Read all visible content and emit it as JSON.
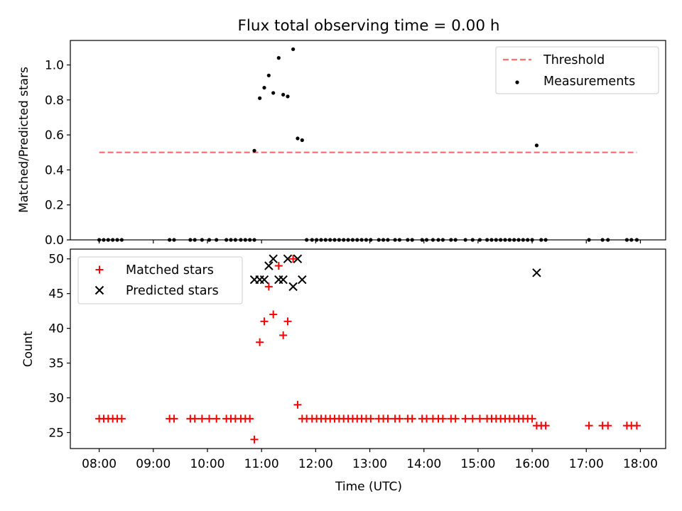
{
  "figure": {
    "title": "Flux total observing time = 0.00 h"
  },
  "colors": {
    "threshold": "#ff7070",
    "measurements": "#000000",
    "matched": "#ff0000",
    "predicted": "#000000"
  },
  "chart_data": [
    {
      "type": "scatter",
      "title": "Flux total observing time = 0.00 h",
      "xlabel": "",
      "ylabel": "Matched/Predicted stars",
      "ylim": [
        0,
        1.14
      ],
      "yticks": [
        "0.0",
        "0.2",
        "0.4",
        "0.6",
        "0.8",
        "1.0"
      ],
      "legend": "top-right",
      "threshold": {
        "name": "Threshold",
        "value": 0.5,
        "x_start": "08:00",
        "x_end": "17:56",
        "style": "dashed"
      },
      "series": [
        {
          "name": "Measurements",
          "marker": "dot",
          "points": [
            [
              "08:00",
              0
            ],
            [
              "08:05",
              0
            ],
            [
              "08:10",
              0
            ],
            [
              "08:15",
              0
            ],
            [
              "08:20",
              0
            ],
            [
              "08:25",
              0
            ],
            [
              "09:18",
              0
            ],
            [
              "09:23",
              0
            ],
            [
              "09:41",
              0
            ],
            [
              "09:46",
              0
            ],
            [
              "09:54",
              0
            ],
            [
              "10:02",
              0
            ],
            [
              "10:10",
              0
            ],
            [
              "10:21",
              0
            ],
            [
              "10:26",
              0
            ],
            [
              "10:31",
              0
            ],
            [
              "10:37",
              0
            ],
            [
              "10:42",
              0
            ],
            [
              "10:47",
              0
            ],
            [
              "10:52",
              0
            ],
            [
              "10:52",
              0.51
            ],
            [
              "10:58",
              0.81
            ],
            [
              "11:03",
              0.87
            ],
            [
              "11:08",
              0.94
            ],
            [
              "11:13",
              0.84
            ],
            [
              "11:19",
              1.04
            ],
            [
              "11:24",
              0.83
            ],
            [
              "11:29",
              0.82
            ],
            [
              "11:35",
              1.09
            ],
            [
              "11:40",
              0.58
            ],
            [
              "11:45",
              0.57
            ],
            [
              "11:50",
              0
            ],
            [
              "11:56",
              0
            ],
            [
              "12:01",
              0
            ],
            [
              "12:06",
              0
            ],
            [
              "12:11",
              0
            ],
            [
              "12:16",
              0
            ],
            [
              "12:21",
              0
            ],
            [
              "12:26",
              0
            ],
            [
              "12:31",
              0
            ],
            [
              "12:36",
              0
            ],
            [
              "12:41",
              0
            ],
            [
              "12:46",
              0
            ],
            [
              "12:51",
              0
            ],
            [
              "12:56",
              0
            ],
            [
              "13:01",
              0
            ],
            [
              "13:10",
              0
            ],
            [
              "13:15",
              0
            ],
            [
              "13:20",
              0
            ],
            [
              "13:28",
              0
            ],
            [
              "13:33",
              0
            ],
            [
              "13:42",
              0
            ],
            [
              "13:47",
              0
            ],
            [
              "13:58",
              0
            ],
            [
              "14:03",
              0
            ],
            [
              "14:10",
              0
            ],
            [
              "14:16",
              0
            ],
            [
              "14:21",
              0
            ],
            [
              "14:30",
              0
            ],
            [
              "14:35",
              0
            ],
            [
              "14:46",
              0
            ],
            [
              "14:54",
              0
            ],
            [
              "15:02",
              0
            ],
            [
              "15:10",
              0
            ],
            [
              "15:15",
              0
            ],
            [
              "15:20",
              0
            ],
            [
              "15:25",
              0
            ],
            [
              "15:30",
              0
            ],
            [
              "15:35",
              0
            ],
            [
              "15:40",
              0
            ],
            [
              "15:45",
              0
            ],
            [
              "15:50",
              0
            ],
            [
              "15:55",
              0
            ],
            [
              "16:00",
              0
            ],
            [
              "16:05",
              0.54
            ],
            [
              "16:10",
              0
            ],
            [
              "16:15",
              0
            ],
            [
              "17:03",
              0
            ],
            [
              "17:18",
              0
            ],
            [
              "17:24",
              0
            ],
            [
              "17:45",
              0
            ],
            [
              "17:50",
              0
            ],
            [
              "17:56",
              0
            ]
          ]
        }
      ]
    },
    {
      "type": "scatter",
      "title": "",
      "xlabel": "Time (UTC)",
      "ylabel": "Count",
      "ylim": [
        22.7,
        51.4
      ],
      "yticks": [
        "25",
        "30",
        "35",
        "40",
        "45",
        "50"
      ],
      "xlim": [
        "07:28",
        "18:28"
      ],
      "xticks": [
        "08:00",
        "09:00",
        "10:00",
        "11:00",
        "12:00",
        "13:00",
        "14:00",
        "15:00",
        "16:00",
        "17:00",
        "18:00"
      ],
      "legend": "top-left",
      "series": [
        {
          "name": "Matched stars",
          "marker": "plus",
          "points": [
            [
              "08:00",
              27
            ],
            [
              "08:05",
              27
            ],
            [
              "08:10",
              27
            ],
            [
              "08:15",
              27
            ],
            [
              "08:20",
              27
            ],
            [
              "08:25",
              27
            ],
            [
              "09:18",
              27
            ],
            [
              "09:23",
              27
            ],
            [
              "09:41",
              27
            ],
            [
              "09:46",
              27
            ],
            [
              "09:54",
              27
            ],
            [
              "10:02",
              27
            ],
            [
              "10:10",
              27
            ],
            [
              "10:21",
              27
            ],
            [
              "10:26",
              27
            ],
            [
              "10:31",
              27
            ],
            [
              "10:37",
              27
            ],
            [
              "10:42",
              27
            ],
            [
              "10:47",
              27
            ],
            [
              "10:52",
              24
            ],
            [
              "10:58",
              38
            ],
            [
              "11:03",
              41
            ],
            [
              "11:08",
              46
            ],
            [
              "11:13",
              42
            ],
            [
              "11:19",
              49
            ],
            [
              "11:24",
              39
            ],
            [
              "11:29",
              41
            ],
            [
              "11:35",
              50
            ],
            [
              "11:40",
              29
            ],
            [
              "11:45",
              27
            ],
            [
              "11:50",
              27
            ],
            [
              "11:56",
              27
            ],
            [
              "12:01",
              27
            ],
            [
              "12:06",
              27
            ],
            [
              "12:11",
              27
            ],
            [
              "12:16",
              27
            ],
            [
              "12:21",
              27
            ],
            [
              "12:26",
              27
            ],
            [
              "12:31",
              27
            ],
            [
              "12:36",
              27
            ],
            [
              "12:41",
              27
            ],
            [
              "12:46",
              27
            ],
            [
              "12:51",
              27
            ],
            [
              "12:56",
              27
            ],
            [
              "13:01",
              27
            ],
            [
              "13:10",
              27
            ],
            [
              "13:15",
              27
            ],
            [
              "13:20",
              27
            ],
            [
              "13:28",
              27
            ],
            [
              "13:33",
              27
            ],
            [
              "13:42",
              27
            ],
            [
              "13:47",
              27
            ],
            [
              "13:58",
              27
            ],
            [
              "14:03",
              27
            ],
            [
              "14:10",
              27
            ],
            [
              "14:16",
              27
            ],
            [
              "14:21",
              27
            ],
            [
              "14:30",
              27
            ],
            [
              "14:35",
              27
            ],
            [
              "14:46",
              27
            ],
            [
              "14:54",
              27
            ],
            [
              "15:02",
              27
            ],
            [
              "15:10",
              27
            ],
            [
              "15:15",
              27
            ],
            [
              "15:20",
              27
            ],
            [
              "15:25",
              27
            ],
            [
              "15:30",
              27
            ],
            [
              "15:35",
              27
            ],
            [
              "15:40",
              27
            ],
            [
              "15:45",
              27
            ],
            [
              "15:50",
              27
            ],
            [
              "15:55",
              27
            ],
            [
              "16:00",
              27
            ],
            [
              "16:05",
              26
            ],
            [
              "16:10",
              26
            ],
            [
              "16:15",
              26
            ],
            [
              "17:03",
              26
            ],
            [
              "17:18",
              26
            ],
            [
              "17:24",
              26
            ],
            [
              "17:45",
              26
            ],
            [
              "17:50",
              26
            ],
            [
              "17:56",
              26
            ]
          ]
        },
        {
          "name": "Predicted stars",
          "marker": "x",
          "points": [
            [
              "10:52",
              47
            ],
            [
              "10:58",
              47
            ],
            [
              "11:03",
              47
            ],
            [
              "11:08",
              49
            ],
            [
              "11:13",
              50
            ],
            [
              "11:19",
              47
            ],
            [
              "11:24",
              47
            ],
            [
              "11:29",
              50
            ],
            [
              "11:35",
              46
            ],
            [
              "11:40",
              50
            ],
            [
              "11:45",
              47
            ],
            [
              "16:05",
              48
            ]
          ]
        }
      ]
    }
  ]
}
